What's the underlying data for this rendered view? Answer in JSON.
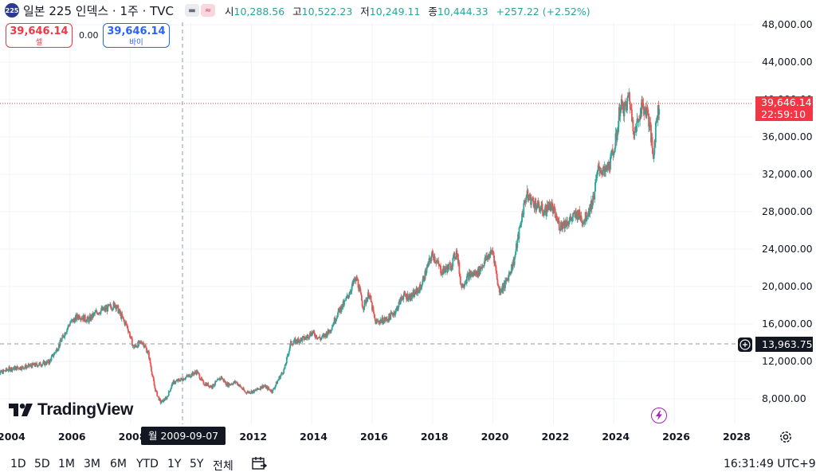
{
  "header": {
    "symbol_badge": "225",
    "title": "일본 225 인덱스 · 1주 · TVC",
    "ohlc": {
      "open_label": "시",
      "open": "10,288.56",
      "high_label": "고",
      "high": "10,522.23",
      "low_label": "저",
      "low": "10,249.11",
      "close_label": "종",
      "close": "10,444.33",
      "change": "+257.22 (+2.52%)"
    }
  },
  "trade": {
    "sell_price": "39,646.14",
    "sell_label": "셀",
    "spread": "0.00",
    "buy_price": "39,646.14",
    "buy_label": "바이"
  },
  "price_axis": {
    "labels": [
      "48,000.00",
      "44,000.00",
      "40,000.00",
      "36,000.00",
      "32,000.00",
      "28,000.00",
      "24,000.00",
      "20,000.00",
      "16,000.00",
      "12,000.00",
      "8,000.00"
    ],
    "last_price": "39,646.14",
    "countdown": "22:59:10",
    "crosshair_price": "13,963.75"
  },
  "time_axis": {
    "labels": [
      "2004",
      "2006",
      "2008",
      "2012",
      "2014",
      "2016",
      "2018",
      "2020",
      "2022",
      "2024",
      "2026",
      "2028"
    ],
    "crosshair_date": "월 2009-09-07"
  },
  "brand": "TradingView",
  "ranges": [
    "1D",
    "5D",
    "1M",
    "3M",
    "6M",
    "YTD",
    "1Y",
    "5Y",
    "전체"
  ],
  "clock": "16:31:49 UTC+9",
  "colors": {
    "up": "#26a69a",
    "down": "#ef5350",
    "sell": "#f23645",
    "buy": "#2962ff"
  },
  "chart_data": {
    "type": "candlestick",
    "interval": "1W",
    "ylim": [
      5500,
      50500
    ],
    "grid": true,
    "series": [
      {
        "name": "일본 225 인덱스",
        "x": [
          2003.5,
          2004.0,
          2004.5,
          2005.0,
          2005.3,
          2005.6,
          2005.9,
          2006.0,
          2006.3,
          2006.6,
          2006.9,
          2007.2,
          2007.5,
          2007.7,
          2007.9,
          2008.1,
          2008.4,
          2008.6,
          2008.8,
          2008.9,
          2009.0,
          2009.2,
          2009.4,
          2009.7,
          2009.9,
          2010.2,
          2010.4,
          2010.7,
          2011.0,
          2011.2,
          2011.5,
          2011.8,
          2012.1,
          2012.4,
          2012.7,
          2012.9,
          2013.1,
          2013.3,
          2013.5,
          2013.8,
          2014.0,
          2014.3,
          2014.6,
          2014.9,
          2015.1,
          2015.4,
          2015.5,
          2015.7,
          2015.9,
          2016.1,
          2016.5,
          2016.8,
          2017.0,
          2017.3,
          2017.6,
          2017.9,
          2018.0,
          2018.3,
          2018.6,
          2018.8,
          2018.95,
          2019.2,
          2019.5,
          2019.8,
          2020.0,
          2020.2,
          2020.4,
          2020.7,
          2020.95,
          2021.1,
          2021.4,
          2021.7,
          2021.9,
          2022.2,
          2022.5,
          2022.8,
          2023.0,
          2023.3,
          2023.5,
          2023.7,
          2023.9,
          2024.1,
          2024.2,
          2024.4,
          2024.5,
          2024.6,
          2024.7,
          2024.9,
          2025.1,
          2025.2,
          2025.3,
          2025.4,
          2025.5
        ],
        "close": [
          10500,
          11200,
          11400,
          11700,
          11900,
          13500,
          15500,
          16100,
          16900,
          16400,
          17300,
          17600,
          18100,
          16800,
          15700,
          13500,
          14100,
          12800,
          9200,
          8300,
          7600,
          8100,
          9700,
          10100,
          10400,
          10900,
          9700,
          9300,
          10300,
          9500,
          9800,
          8700,
          8800,
          9400,
          8800,
          10100,
          11200,
          13900,
          14200,
          14500,
          15100,
          14400,
          15300,
          17400,
          18300,
          20500,
          20800,
          17800,
          19300,
          16200,
          16500,
          17500,
          19000,
          18900,
          19900,
          22700,
          23500,
          21600,
          22200,
          23800,
          20000,
          21200,
          21500,
          23100,
          23800,
          19500,
          20200,
          22800,
          27400,
          29800,
          28800,
          28000,
          28800,
          26500,
          27000,
          27800,
          27000,
          29100,
          32800,
          32100,
          33400,
          36200,
          39200,
          39000,
          40500,
          38000,
          36400,
          39200,
          38800,
          36900,
          33800,
          37500,
          39600
        ]
      }
    ]
  }
}
